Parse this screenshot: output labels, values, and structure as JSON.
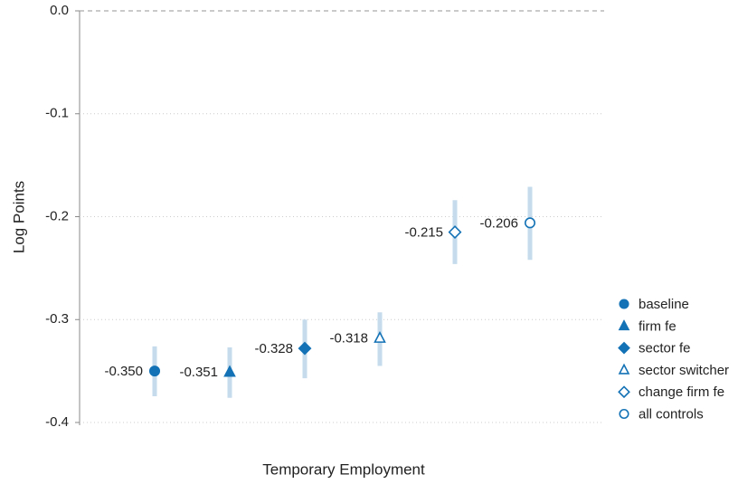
{
  "chart_data": {
    "type": "coefplot",
    "x_label": "Temporary Employment",
    "y_label": "Log Points",
    "ylim": [
      -0.4,
      0.0
    ],
    "yticks": [
      {
        "value": 0,
        "label": "0.0"
      },
      -0.1,
      -0.2,
      -0.3,
      -0.4
    ],
    "grid": true,
    "legend": "right",
    "ci_color": "#c6dcec",
    "series": [
      {
        "name": "baseline",
        "marker": "circle",
        "filled": true,
        "color": "#1372b5",
        "values": [
          -0.35
        ],
        "value_labels": [
          "-0.350"
        ],
        "ci_low": [
          -0.3745
        ],
        "ci_high": [
          -0.326
        ]
      },
      {
        "name": "firm fe",
        "marker": "triangle",
        "filled": true,
        "color": "#1372b5",
        "values": [
          -0.351
        ],
        "value_labels": [
          "-0.351"
        ],
        "ci_low": [
          -0.376
        ],
        "ci_high": [
          -0.327
        ]
      },
      {
        "name": "sector fe",
        "marker": "diamond",
        "filled": true,
        "color": "#1372b5",
        "values": [
          -0.328
        ],
        "value_labels": [
          "-0.328"
        ],
        "ci_low": [
          -0.357
        ],
        "ci_high": [
          -0.3
        ]
      },
      {
        "name": "sector switcher",
        "marker": "triangle",
        "filled": false,
        "color": "#1372b5",
        "values": [
          -0.318
        ],
        "value_labels": [
          "-0.318"
        ],
        "ci_low": [
          -0.345
        ],
        "ci_high": [
          -0.293
        ]
      },
      {
        "name": "change firm fe",
        "marker": "diamond",
        "filled": false,
        "color": "#1372b5",
        "values": [
          -0.215
        ],
        "value_labels": [
          "-0.215"
        ],
        "ci_low": [
          -0.246
        ],
        "ci_high": [
          -0.184
        ]
      },
      {
        "name": "all controls",
        "marker": "circle",
        "filled": false,
        "color": "#1372b5",
        "values": [
          -0.206
        ],
        "value_labels": [
          "-0.206"
        ],
        "ci_low": [
          -0.242
        ],
        "ci_high": [
          -0.171
        ]
      }
    ]
  }
}
